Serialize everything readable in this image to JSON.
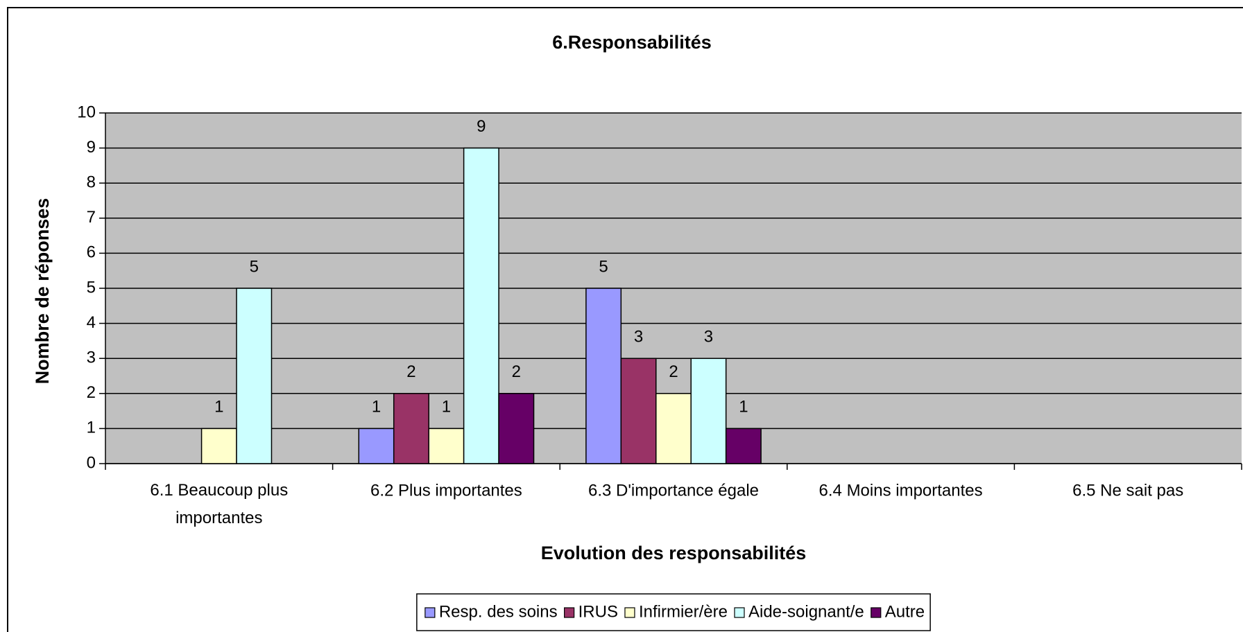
{
  "chart_data": {
    "type": "bar",
    "title": "6.Responsabilités",
    "x_label": "Evolution des responsabilités",
    "y_label": "Nombre de réponses",
    "categories": [
      "6.1 Beaucoup plus importantes",
      "6.2 Plus importantes",
      "6.3 D'importance égale",
      "6.4 Moins importantes",
      "6.5 Ne sait pas"
    ],
    "series": [
      {
        "name": "Resp. des soins",
        "color": "#9999ff",
        "values": [
          null,
          1,
          5,
          null,
          null
        ]
      },
      {
        "name": "IRUS",
        "color": "#993366",
        "values": [
          null,
          2,
          3,
          null,
          null
        ]
      },
      {
        "name": "Infirmier/ère",
        "color": "#ffffcc",
        "values": [
          1,
          1,
          2,
          null,
          null
        ]
      },
      {
        "name": "Aide-soignant/e",
        "color": "#ccffff",
        "values": [
          5,
          9,
          3,
          null,
          null
        ]
      },
      {
        "name": "Autre",
        "color": "#660066",
        "values": [
          null,
          2,
          1,
          null,
          null
        ]
      }
    ],
    "ylim": [
      0,
      10
    ],
    "yticks": [
      0,
      1,
      2,
      3,
      4,
      5,
      6,
      7,
      8,
      9,
      10
    ],
    "grid": true,
    "legend": "bottom"
  }
}
